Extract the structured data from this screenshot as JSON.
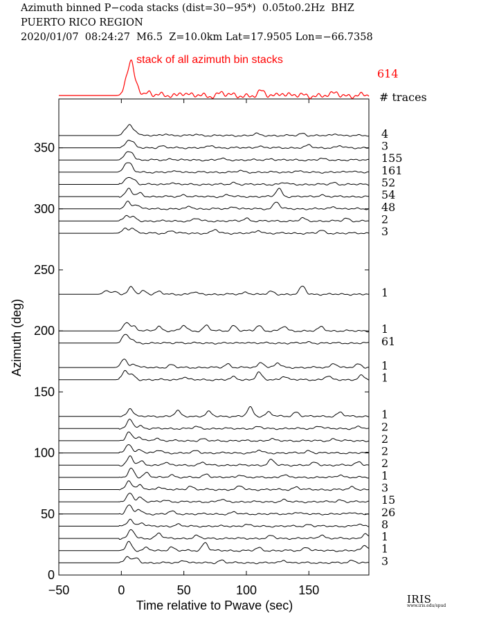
{
  "header": {
    "line1": "Azimuth binned P−coda stacks (dist=30−95*)  0.05to0.2Hz  BHZ",
    "line2": "PUERTO RICO REGION",
    "line3": "2020/01/07  08:24:27  M6.5  Z=10.0km Lat=17.9505 Lon=−66.7358"
  },
  "colors": {
    "trace": "#000000",
    "stack": "#ff0000"
  },
  "logo": {
    "text": "IRIS",
    "subtext": "www.iris.edu/spud"
  },
  "chart_data": {
    "type": "line",
    "xlabel": "Time relative to Pwave (sec)",
    "ylabel": "Azimuth (deg)",
    "xlim": [
      -50,
      198
    ],
    "ylim": [
      0,
      390
    ],
    "xticks": [
      -50,
      0,
      50,
      100,
      150
    ],
    "yticks": [
      0,
      50,
      100,
      150,
      200,
      250,
      300,
      350
    ],
    "stack": {
      "label": "stack of all azimuth bin stacks",
      "count": "614",
      "count_header": "# traces",
      "peaks": [
        [
          4,
          0.45
        ],
        [
          8,
          1.0
        ],
        [
          13,
          0.3
        ],
        [
          22,
          0.12
        ],
        [
          48,
          0.12
        ],
        [
          80,
          0.1
        ],
        [
          112,
          0.13
        ],
        [
          128,
          0.11
        ],
        [
          172,
          0.09
        ]
      ]
    },
    "traces": [
      {
        "azimuth": 360,
        "count": "4",
        "peaks": [
          [
            3,
            0.5
          ],
          [
            7,
            1.0
          ],
          [
            12,
            0.4
          ],
          [
            36,
            0.2
          ],
          [
            60,
            0.15
          ],
          [
            108,
            0.2
          ],
          [
            145,
            0.25
          ],
          [
            172,
            0.2
          ]
        ]
      },
      {
        "azimuth": 350,
        "count": "3",
        "peaks": [
          [
            5,
            0.7
          ],
          [
            9,
            0.5
          ],
          [
            32,
            0.2
          ],
          [
            72,
            0.25
          ],
          [
            110,
            0.2
          ],
          [
            150,
            0.3
          ],
          [
            175,
            0.2
          ]
        ]
      },
      {
        "azimuth": 340,
        "count": "155",
        "peaks": [
          [
            4,
            0.6
          ],
          [
            8,
            0.8
          ],
          [
            40,
            0.15
          ],
          [
            80,
            0.15
          ],
          [
            120,
            0.15
          ],
          [
            160,
            0.15
          ]
        ]
      },
      {
        "azimuth": 330,
        "count": "161",
        "peaks": [
          [
            3,
            0.7
          ],
          [
            7,
            0.8
          ],
          [
            45,
            0.15
          ],
          [
            95,
            0.15
          ],
          [
            140,
            0.15
          ],
          [
            185,
            0.15
          ]
        ]
      },
      {
        "azimuth": 320,
        "count": "52",
        "peaks": [
          [
            5,
            0.8
          ],
          [
            10,
            0.5
          ],
          [
            40,
            0.2
          ],
          [
            90,
            0.2
          ],
          [
            130,
            0.2
          ],
          [
            170,
            0.2
          ]
        ]
      },
      {
        "azimuth": 310,
        "count": "54",
        "peaks": [
          [
            6,
            0.9
          ],
          [
            15,
            0.4
          ],
          [
            50,
            0.2
          ],
          [
            85,
            0.2
          ],
          [
            126,
            0.9
          ],
          [
            160,
            0.2
          ]
        ]
      },
      {
        "azimuth": 300,
        "count": "48",
        "peaks": [
          [
            5,
            0.8
          ],
          [
            12,
            0.5
          ],
          [
            55,
            0.25
          ],
          [
            90,
            0.25
          ],
          [
            124,
            0.8
          ],
          [
            170,
            0.25
          ]
        ]
      },
      {
        "azimuth": 290,
        "count": "2",
        "peaks": [
          [
            4,
            0.6
          ],
          [
            10,
            0.4
          ],
          [
            60,
            0.3
          ],
          [
            100,
            0.3
          ],
          [
            145,
            0.3
          ],
          [
            180,
            0.3
          ]
        ]
      },
      {
        "azimuth": 280,
        "count": "3",
        "peaks": [
          [
            3,
            0.5
          ],
          [
            9,
            0.6
          ],
          [
            40,
            0.3
          ],
          [
            75,
            0.4
          ],
          [
            110,
            0.3
          ],
          [
            160,
            0.3
          ]
        ]
      },
      {
        "azimuth": 230,
        "count": "1",
        "peaks": [
          [
            -12,
            0.4
          ],
          [
            -5,
            0.3
          ],
          [
            8,
            0.8
          ],
          [
            18,
            0.4
          ],
          [
            30,
            0.3
          ],
          [
            58,
            0.25
          ],
          [
            100,
            0.25
          ],
          [
            120,
            0.3
          ],
          [
            145,
            0.9
          ]
        ]
      },
      {
        "azimuth": 200,
        "count": "1",
        "peaks": [
          [
            4,
            1.0
          ],
          [
            10,
            0.5
          ],
          [
            30,
            0.5
          ],
          [
            50,
            0.6
          ],
          [
            68,
            0.6
          ],
          [
            90,
            0.6
          ],
          [
            110,
            0.6
          ],
          [
            130,
            0.5
          ],
          [
            160,
            0.45
          ]
        ]
      },
      {
        "azimuth": 190,
        "count": "61",
        "peaks": [
          [
            3,
            0.9
          ],
          [
            8,
            0.4
          ],
          [
            45,
            0.1
          ],
          [
            100,
            0.1
          ],
          [
            150,
            0.1
          ]
        ]
      },
      {
        "azimuth": 170,
        "count": "1",
        "peaks": [
          [
            2,
            1.0
          ],
          [
            10,
            0.4
          ],
          [
            40,
            0.3
          ],
          [
            85,
            0.4
          ],
          [
            112,
            0.6
          ],
          [
            125,
            0.5
          ],
          [
            170,
            0.5
          ],
          [
            190,
            0.4
          ]
        ]
      },
      {
        "azimuth": 160,
        "count": "1",
        "peaks": [
          [
            3,
            1.0
          ],
          [
            9,
            0.5
          ],
          [
            50,
            0.3
          ],
          [
            90,
            0.3
          ],
          [
            110,
            0.8
          ],
          [
            130,
            0.4
          ],
          [
            165,
            0.4
          ],
          [
            192,
            0.45
          ]
        ]
      },
      {
        "azimuth": 130,
        "count": "1",
        "peaks": [
          [
            7,
            0.9
          ],
          [
            45,
            0.6
          ],
          [
            70,
            0.5
          ],
          [
            103,
            1.0
          ],
          [
            118,
            0.5
          ],
          [
            140,
            0.5
          ],
          [
            175,
            0.45
          ]
        ]
      },
      {
        "azimuth": 120,
        "count": "2",
        "peaks": [
          [
            7,
            1.0
          ],
          [
            15,
            0.3
          ],
          [
            60,
            0.2
          ],
          [
            110,
            0.2
          ],
          [
            158,
            0.3
          ],
          [
            190,
            0.2
          ]
        ]
      },
      {
        "azimuth": 110,
        "count": "2",
        "peaks": [
          [
            6,
            1.0
          ],
          [
            14,
            0.4
          ],
          [
            28,
            0.3
          ],
          [
            65,
            0.2
          ],
          [
            120,
            0.2
          ],
          [
            170,
            0.2
          ]
        ]
      },
      {
        "azimuth": 100,
        "count": "2",
        "peaks": [
          [
            6,
            1.0
          ],
          [
            15,
            0.4
          ],
          [
            30,
            0.3
          ],
          [
            60,
            0.25
          ],
          [
            110,
            0.3
          ],
          [
            150,
            0.25
          ]
        ]
      },
      {
        "azimuth": 90,
        "count": "2",
        "peaks": [
          [
            7,
            1.0
          ],
          [
            16,
            0.4
          ],
          [
            35,
            0.3
          ],
          [
            65,
            0.3
          ],
          [
            120,
            0.6
          ],
          [
            155,
            0.3
          ],
          [
            190,
            0.4
          ]
        ]
      },
      {
        "azimuth": 80,
        "count": "1",
        "peaks": [
          [
            8,
            1.0
          ],
          [
            20,
            0.5
          ],
          [
            40,
            0.3
          ],
          [
            68,
            0.4
          ],
          [
            95,
            0.3
          ],
          [
            130,
            0.3
          ],
          [
            175,
            0.3
          ]
        ]
      },
      {
        "azimuth": 70,
        "count": "3",
        "peaks": [
          [
            6,
            1.0
          ],
          [
            15,
            0.5
          ],
          [
            30,
            0.3
          ],
          [
            55,
            0.4
          ],
          [
            95,
            0.4
          ],
          [
            140,
            0.3
          ],
          [
            185,
            0.3
          ]
        ]
      },
      {
        "azimuth": 60,
        "count": "15",
        "peaks": [
          [
            7,
            1.0
          ],
          [
            15,
            0.5
          ],
          [
            35,
            0.2
          ],
          [
            80,
            0.25
          ],
          [
            130,
            0.2
          ],
          [
            175,
            0.2
          ]
        ]
      },
      {
        "azimuth": 50,
        "count": "26",
        "peaks": [
          [
            6,
            1.0
          ],
          [
            14,
            0.5
          ],
          [
            40,
            0.3
          ],
          [
            90,
            0.2
          ],
          [
            140,
            0.2
          ],
          [
            185,
            0.2
          ]
        ]
      },
      {
        "azimuth": 40,
        "count": "8",
        "peaks": [
          [
            7,
            0.8
          ],
          [
            16,
            0.4
          ],
          [
            45,
            0.2
          ],
          [
            100,
            0.2
          ],
          [
            150,
            0.2
          ],
          [
            190,
            0.2
          ]
        ]
      },
      {
        "azimuth": 30,
        "count": "1",
        "peaks": [
          [
            8,
            1.0
          ],
          [
            30,
            0.6
          ],
          [
            60,
            0.3
          ],
          [
            120,
            0.3
          ],
          [
            160,
            0.4
          ],
          [
            195,
            0.5
          ]
        ]
      },
      {
        "azimuth": 20,
        "count": "1",
        "peaks": [
          [
            6,
            1.0
          ],
          [
            20,
            0.3
          ],
          [
            40,
            0.4
          ],
          [
            67,
            0.9
          ],
          [
            110,
            0.3
          ],
          [
            148,
            0.4
          ],
          [
            195,
            0.6
          ]
        ]
      },
      {
        "azimuth": 10,
        "count": "3",
        "peaks": [
          [
            5,
            0.7
          ],
          [
            12,
            0.5
          ],
          [
            50,
            0.3
          ],
          [
            80,
            0.3
          ],
          [
            130,
            0.3
          ],
          [
            185,
            0.3
          ]
        ]
      }
    ]
  }
}
